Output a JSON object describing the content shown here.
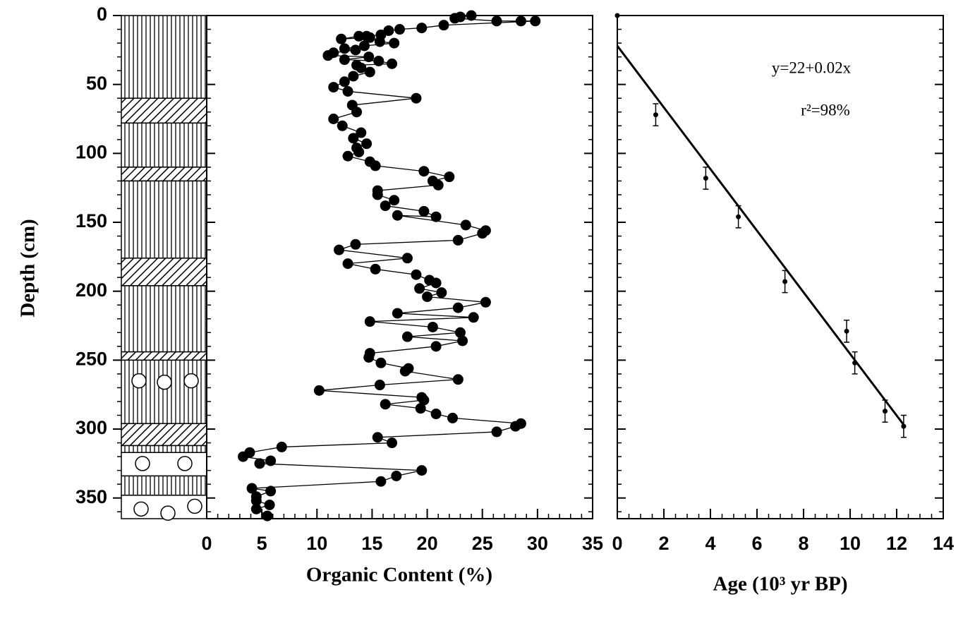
{
  "chart_data": [
    {
      "type": "line",
      "x_label": "Organic Content (%)",
      "y_label": "Depth (cm)",
      "xlim": [
        0,
        35
      ],
      "xticks": [
        0,
        5,
        10,
        15,
        20,
        25,
        30,
        35
      ],
      "ylim": [
        0,
        365
      ],
      "yticks": [
        0,
        50,
        100,
        150,
        200,
        250,
        300,
        350
      ],
      "y_reversed": true,
      "series": [
        {
          "color": "#000000",
          "x": [
            24,
            23,
            22.5,
            26.3,
            28.5,
            29.8,
            21.5,
            19.5,
            17.5,
            16.5,
            15.8,
            14.5,
            13.8,
            12.2,
            14.8,
            15.7,
            17,
            14.3,
            12.5,
            13.5,
            11.5,
            11,
            14.7,
            12.5,
            15.6,
            16.8,
            13.6,
            14,
            14.8,
            13.3,
            12.5,
            11.5,
            12.8,
            19,
            13.2,
            13.6,
            11.5,
            12.3,
            14,
            13.3,
            14.5,
            13.6,
            13.8,
            12.8,
            14.8,
            15.3,
            19.7,
            22,
            20.5,
            21,
            15.5,
            15.5,
            17,
            16.2,
            19.7,
            20.8,
            17.3,
            23.5,
            25.3,
            25,
            22.8,
            13.5,
            12,
            18.2,
            12.8,
            15.3,
            19,
            20.2,
            20.8,
            19.3,
            21.3,
            20,
            25.3,
            22.8,
            17.3,
            24.2,
            14.8,
            20.5,
            23,
            18.2,
            23.2,
            20.8,
            14.8,
            14.7,
            15.8,
            18.3,
            18,
            22.8,
            15.7,
            10.2,
            19.5,
            19.7,
            16.2,
            19.4,
            20.8,
            22.3,
            28.5,
            28,
            26.3,
            15.5,
            16.8,
            6.8,
            3.9,
            3.3,
            5.8,
            4.8,
            19.5,
            17.2,
            15.8,
            4.1,
            5.8,
            4.5,
            4.5,
            5.7,
            4.5,
            5.5
          ],
          "values": [
            0,
            1,
            2,
            4,
            4,
            4,
            7,
            9,
            10,
            11,
            14,
            15,
            15,
            17,
            16,
            19,
            20,
            22,
            24,
            25,
            27,
            29,
            30,
            32,
            33,
            35,
            36,
            38,
            41,
            44,
            48,
            52,
            55,
            60,
            65,
            70,
            75,
            80,
            85,
            89,
            93,
            96,
            99,
            102,
            106,
            109,
            113,
            117,
            120,
            123,
            127,
            130,
            134,
            138,
            142,
            146,
            145,
            152,
            156,
            158,
            163,
            166,
            170,
            176,
            180,
            184,
            188,
            192,
            194,
            198,
            201,
            204,
            208,
            212,
            216,
            219,
            222,
            226,
            230,
            233,
            236,
            240,
            245,
            248,
            252,
            256,
            258,
            264,
            268,
            272,
            277,
            279,
            282,
            285,
            289,
            292,
            296,
            298,
            302,
            306,
            310,
            313,
            317,
            320,
            323,
            325,
            330,
            334,
            338,
            343,
            345,
            349,
            352,
            355,
            358,
            363
          ]
        }
      ]
    },
    {
      "type": "scatter",
      "x_label": "Age (10³ yr BP)",
      "xlim": [
        0,
        14
      ],
      "xticks": [
        0,
        2,
        4,
        6,
        8,
        10,
        12,
        14
      ],
      "ylim": [
        0,
        365
      ],
      "yticks": [
        0,
        50,
        100,
        150,
        200,
        250,
        300,
        350
      ],
      "y_reversed": true,
      "annotations": [
        "y=22+0.02x",
        "r²=98%"
      ],
      "series": [
        {
          "color": "#000000",
          "x": [
            0,
            1.65,
            3.8,
            5.2,
            7.2,
            9.85,
            10.2,
            11.5,
            12.3
          ],
          "values": [
            0,
            72,
            118,
            146,
            193,
            229,
            252,
            287,
            298
          ],
          "yerr": [
            0,
            4,
            4,
            4,
            4,
            4,
            4,
            4,
            4
          ]
        }
      ],
      "fit": {
        "color": "#000000",
        "x": [
          0,
          12.35
        ],
        "values": [
          22,
          298
        ]
      }
    }
  ]
}
